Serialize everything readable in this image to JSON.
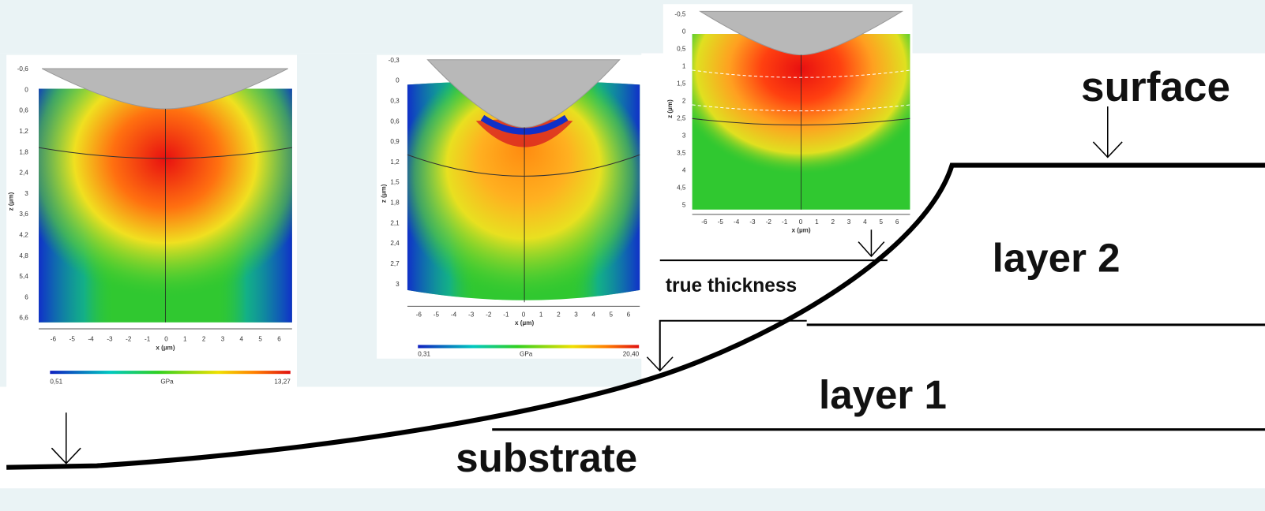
{
  "labels": {
    "surface": "surface",
    "layer_2": "layer 2",
    "layer_1": "layer 1",
    "substrate": "substrate",
    "true_thickness": "true thickness"
  },
  "insets": [
    {
      "z_label": "z (µm)",
      "x_label": "x (µm)",
      "z_ticks": [
        "-0,6",
        "0",
        "0,6",
        "1,2",
        "1,8",
        "2,4",
        "3",
        "3,6",
        "4,2",
        "4,8",
        "5,4",
        "6",
        "6,6"
      ],
      "x_ticks": [
        -6,
        -5,
        -4,
        -3,
        -2,
        -1,
        0,
        1,
        2,
        3,
        4,
        5,
        6
      ],
      "colorbar": {
        "min": "0,51",
        "unit": "GPa",
        "max": "13,27"
      }
    },
    {
      "z_label": "z (µm)",
      "x_label": "x (µm)",
      "z_ticks": [
        "-0,3",
        "0",
        "0,3",
        "0,6",
        "0,9",
        "1,2",
        "1,5",
        "1,8",
        "2,1",
        "2,4",
        "2,7",
        "3"
      ],
      "x_ticks": [
        -6,
        -5,
        -4,
        -3,
        -2,
        -1,
        0,
        1,
        2,
        3,
        4,
        5,
        6
      ],
      "colorbar": {
        "min": "0,31",
        "unit": "GPa",
        "max": "20,40"
      }
    },
    {
      "z_label": "z (µm)",
      "x_label": "x (µm)",
      "z_ticks": [
        "-0,5",
        "0",
        "0,5",
        "1",
        "1,5",
        "2",
        "2,5",
        "3",
        "3,5",
        "4",
        "4,5",
        "5"
      ],
      "x_ticks": [
        -6,
        -5,
        -4,
        -3,
        -2,
        -1,
        0,
        1,
        2,
        3,
        4,
        5,
        6
      ]
    }
  ]
}
